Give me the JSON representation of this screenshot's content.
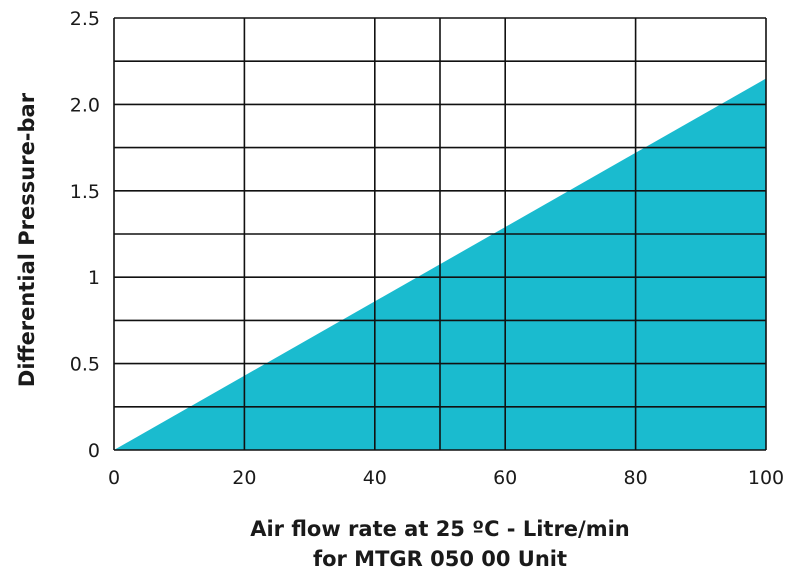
{
  "chart_data": {
    "type": "area",
    "xlabel": [
      "Air flow rate at 25 ºC - Litre/min",
      "for MTGR 050 00 Unit"
    ],
    "ylabel": "Differential Pressure-bar",
    "xlim": [
      0,
      100
    ],
    "ylim": [
      0,
      2.5
    ],
    "x_ticks": [
      0,
      20,
      40,
      60,
      80,
      100
    ],
    "x_tick_labels": [
      "0",
      "20",
      "40",
      "60",
      "80",
      "100"
    ],
    "y_ticks": [
      0,
      0.5,
      1,
      1.5,
      2.0,
      2.5
    ],
    "y_tick_labels": [
      "0",
      "0.5",
      "1",
      "1.5",
      "2.0",
      "2.5"
    ],
    "grid": true,
    "x_gridlines": [
      0,
      20,
      40,
      50,
      60,
      80,
      100
    ],
    "y_gridlines": [
      0,
      0.25,
      0.5,
      0.75,
      1,
      1.25,
      1.5,
      1.75,
      2.0,
      2.25,
      2.5
    ],
    "series": [
      {
        "x": [
          0,
          100
        ],
        "y": [
          0,
          2.15
        ]
      }
    ],
    "fill_color": "#1ABBCF",
    "grid_color": "#111111"
  }
}
